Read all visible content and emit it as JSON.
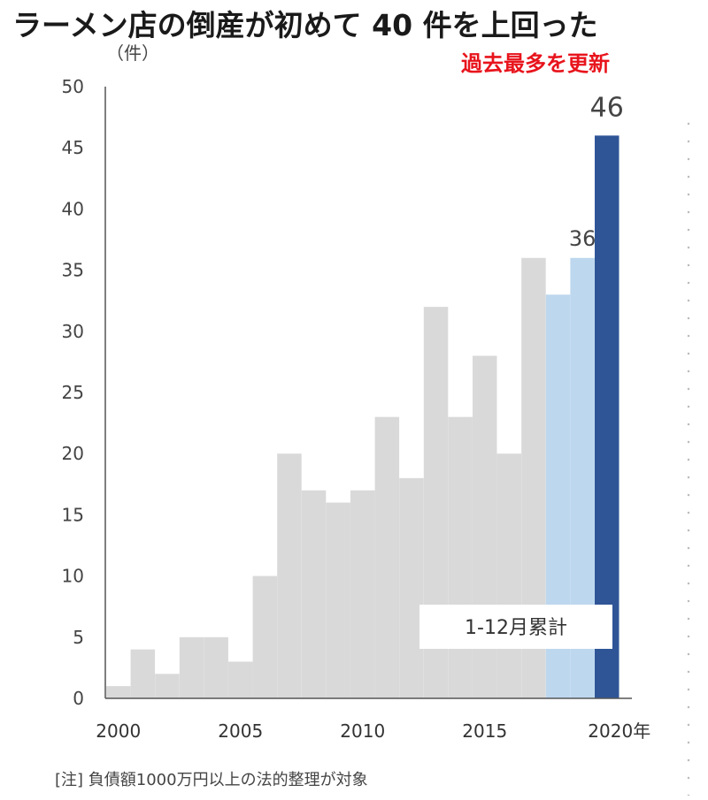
{
  "title": "ラーメン店の倒産が初めて 40 件を上回った",
  "unit_label": "（件）",
  "record_label": "過去最多を更新",
  "note": "[注] 負債額1000万円以上の法的整理が対象",
  "colors": {
    "past": "#d9d9d9",
    "partial": "#bdd7ee",
    "latest": "#2f5597",
    "record_text": "#e8141c"
  },
  "chart_data": {
    "type": "bar",
    "title": "ラーメン店の倒産が初めて 40 件を上回った",
    "ylabel": "（件）",
    "ylim": [
      0,
      50
    ],
    "yticks": [
      0,
      5,
      10,
      15,
      20,
      25,
      30,
      35,
      40,
      45,
      50
    ],
    "x_tick_labels": [
      "2000",
      "2005",
      "2010",
      "2015",
      "2020年"
    ],
    "categories": [
      "2000",
      "2001",
      "2002",
      "2003",
      "2004",
      "2005",
      "2006",
      "2007",
      "2008",
      "2009",
      "2010",
      "2011",
      "2012",
      "2013",
      "2014",
      "2015",
      "2016",
      "2017",
      "2018",
      "2019",
      "2020"
    ],
    "values": [
      1,
      4,
      2,
      5,
      5,
      3,
      10,
      20,
      17,
      16,
      17,
      23,
      18,
      32,
      23,
      28,
      20,
      36,
      33,
      36,
      46
    ],
    "bar_groups": [
      "past",
      "past",
      "past",
      "past",
      "past",
      "past",
      "past",
      "past",
      "past",
      "past",
      "past",
      "past",
      "past",
      "past",
      "past",
      "past",
      "past",
      "past",
      "partial",
      "partial",
      "latest"
    ],
    "data_labels": [
      {
        "category": "2019",
        "text": "36"
      },
      {
        "category": "2020",
        "text": "46"
      }
    ],
    "legend_box": {
      "text": "1-12月累計",
      "placement": "bottom-right"
    },
    "grid": false
  }
}
